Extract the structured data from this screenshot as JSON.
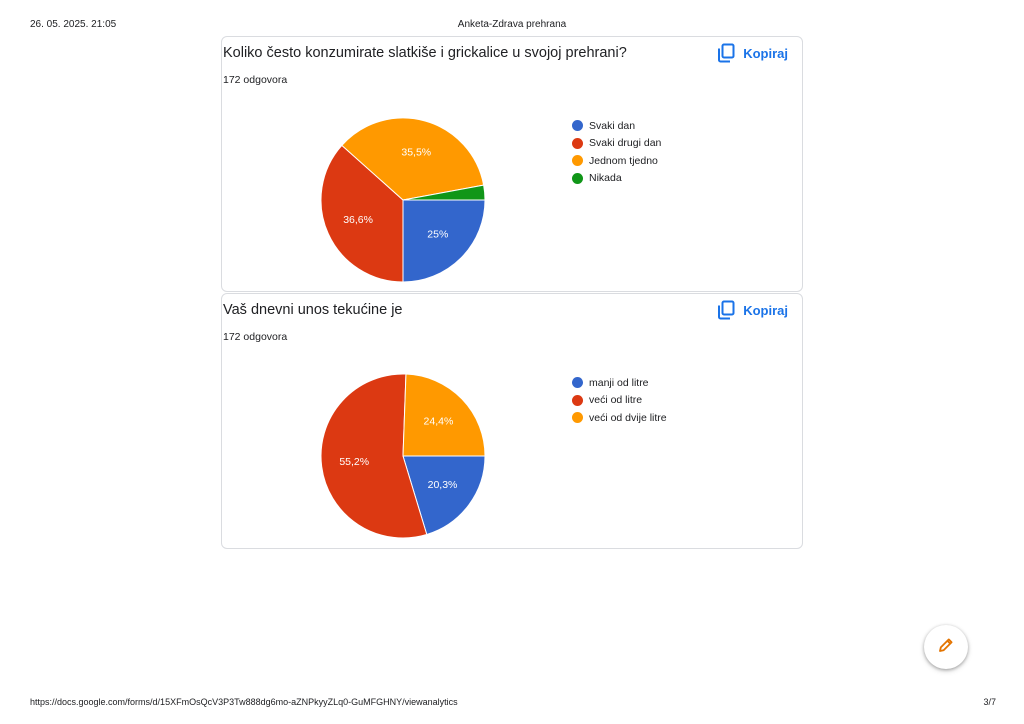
{
  "header": {
    "print_date": "26. 05. 2025. 21:05",
    "doc_title": "Anketa-Zdrava prehrana"
  },
  "footer": {
    "url": "https://docs.google.com/forms/d/15XFmOsQcV3P3Tw888dg6mo-aZNPkyyZLq0-GuMFGHNY/viewanalytics",
    "page": "3/7"
  },
  "copy_label": "Kopiraj",
  "icons": {
    "copy": "copy-icon",
    "edit": "pencil-icon"
  },
  "colors": {
    "blue": "#3366cc",
    "red": "#dc3912",
    "orange": "#ff9900",
    "green": "#109618",
    "accent": "#1a73e8",
    "edit_icon": "#e37400"
  },
  "questions": [
    {
      "title": "Koliko često konzumirate slatkiše i grickalice u svojoj prehrani?",
      "count": "172 odgovora"
    },
    {
      "title": "Vaš dnevni unos tekućine je",
      "count": "172 odgovora"
    }
  ],
  "chart_data": [
    {
      "type": "pie",
      "legend_position": "right",
      "slices": [
        {
          "label": "Svaki dan",
          "value": 25,
          "display": "25%",
          "color": "#3366cc"
        },
        {
          "label": "Svaki drugi dan",
          "value": 36.6,
          "display": "36,6%",
          "color": "#dc3912"
        },
        {
          "label": "Jednom tjedno",
          "value": 35.5,
          "display": "35,5%",
          "color": "#ff9900"
        },
        {
          "label": "Nikada",
          "value": 2.9,
          "display": "",
          "color": "#109618"
        }
      ]
    },
    {
      "type": "pie",
      "legend_position": "right",
      "slices": [
        {
          "label": "manji od litre",
          "value": 20.3,
          "display": "20,3%",
          "color": "#3366cc"
        },
        {
          "label": "veći od litre",
          "value": 55.2,
          "display": "55,2%",
          "color": "#dc3912"
        },
        {
          "label": "veći od dvije litre",
          "value": 24.4,
          "display": "24,4%",
          "color": "#ff9900"
        }
      ]
    }
  ]
}
